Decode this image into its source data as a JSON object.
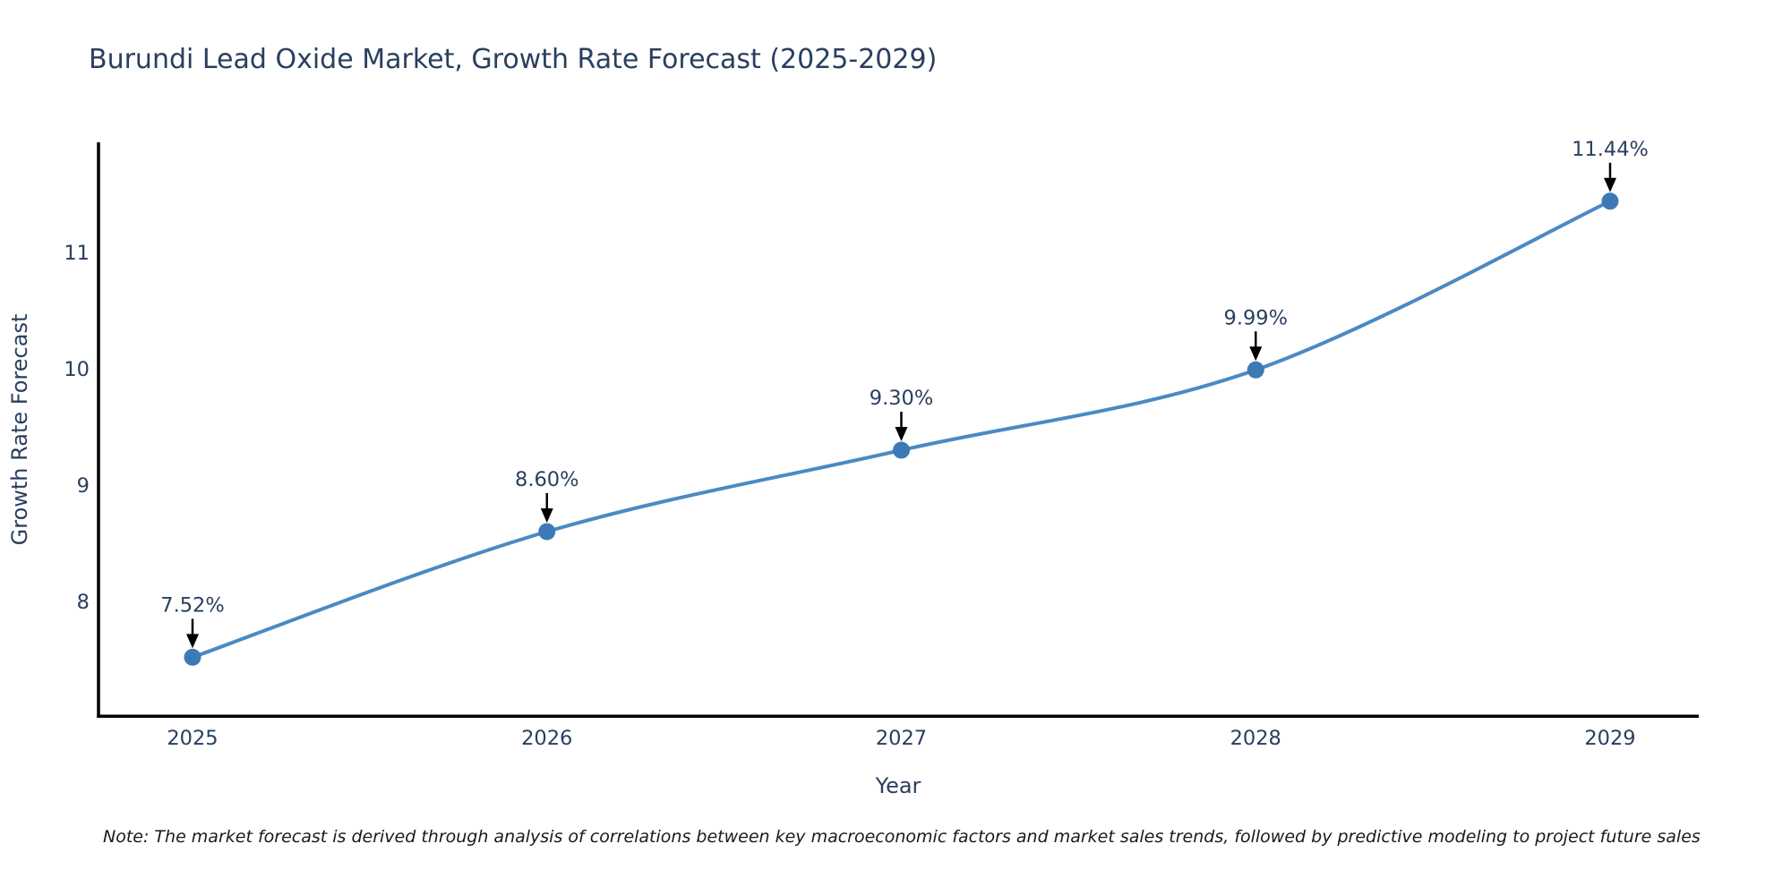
{
  "page": {
    "title": "Burundi Lead Oxide Market, Growth Rate Forecast (2025-2029)",
    "note": "Note: The market forecast is derived through analysis of correlations between key macroeconomic factors and market sales trends, followed by predictive modeling to project future sales"
  },
  "chart_data": {
    "type": "line",
    "title": "Burundi Lead Oxide Market, Growth Rate Forecast (2025-2029)",
    "xlabel": "Year",
    "ylabel": "Growth Rate Forecast",
    "categories": [
      "2025",
      "2026",
      "2027",
      "2028",
      "2029"
    ],
    "series": [
      {
        "name": "Growth Rate Forecast",
        "values": [
          7.52,
          8.6,
          9.3,
          9.99,
          11.44
        ]
      }
    ],
    "point_labels": [
      "7.52%",
      "8.60%",
      "9.30%",
      "9.99%",
      "11.44%"
    ],
    "yticks": [
      "8",
      "9",
      "10",
      "11"
    ],
    "ylim": [
      7.0,
      11.95
    ],
    "grid": false,
    "legend_position": "none",
    "line_shape": "spline",
    "colors": {
      "line": "#4a8ac4",
      "marker": "#3d7ab5",
      "axis": "#000000",
      "tick_text": "#2a3f5f",
      "annotation_text": "#2a3f5f",
      "annotation_arrow": "#000000",
      "note_text": "#1a1a1a",
      "background": "#ffffff"
    }
  }
}
